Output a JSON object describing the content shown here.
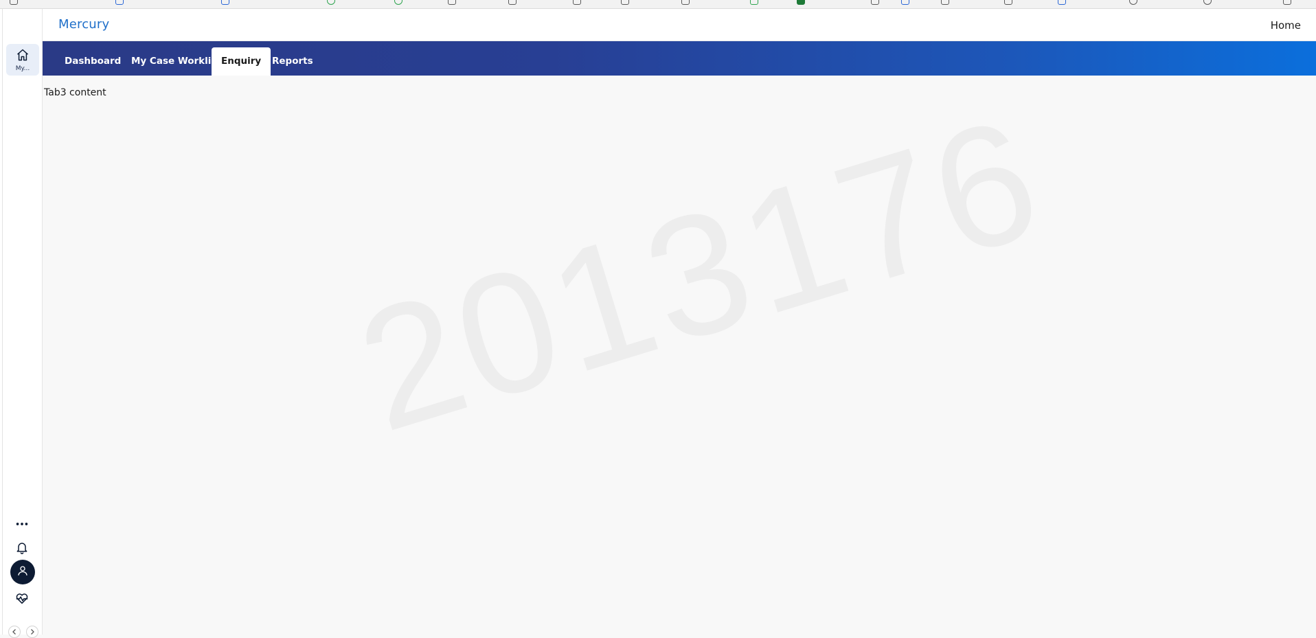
{
  "app": {
    "title": "Mercury",
    "home_link": "Home"
  },
  "rail": {
    "home_label": "My...",
    "items": [
      {
        "icon": "home-icon"
      },
      {
        "icon": "more-icon"
      },
      {
        "icon": "bell-icon"
      },
      {
        "icon": "user-icon"
      },
      {
        "icon": "health-icon"
      }
    ]
  },
  "nav": {
    "tabs": [
      {
        "label": "Dashboard"
      },
      {
        "label": "My Case Worklist"
      },
      {
        "label": "Enquiry",
        "active": true
      },
      {
        "label": "Reports"
      }
    ]
  },
  "content": {
    "text": "Tab3 content"
  },
  "watermark": "2013176",
  "colors": {
    "brand": "#1f6fc9",
    "nav_gradient_start": "#2a3a86",
    "nav_gradient_end": "#0b6fdc",
    "avatar_bg": "#0d1b33"
  }
}
